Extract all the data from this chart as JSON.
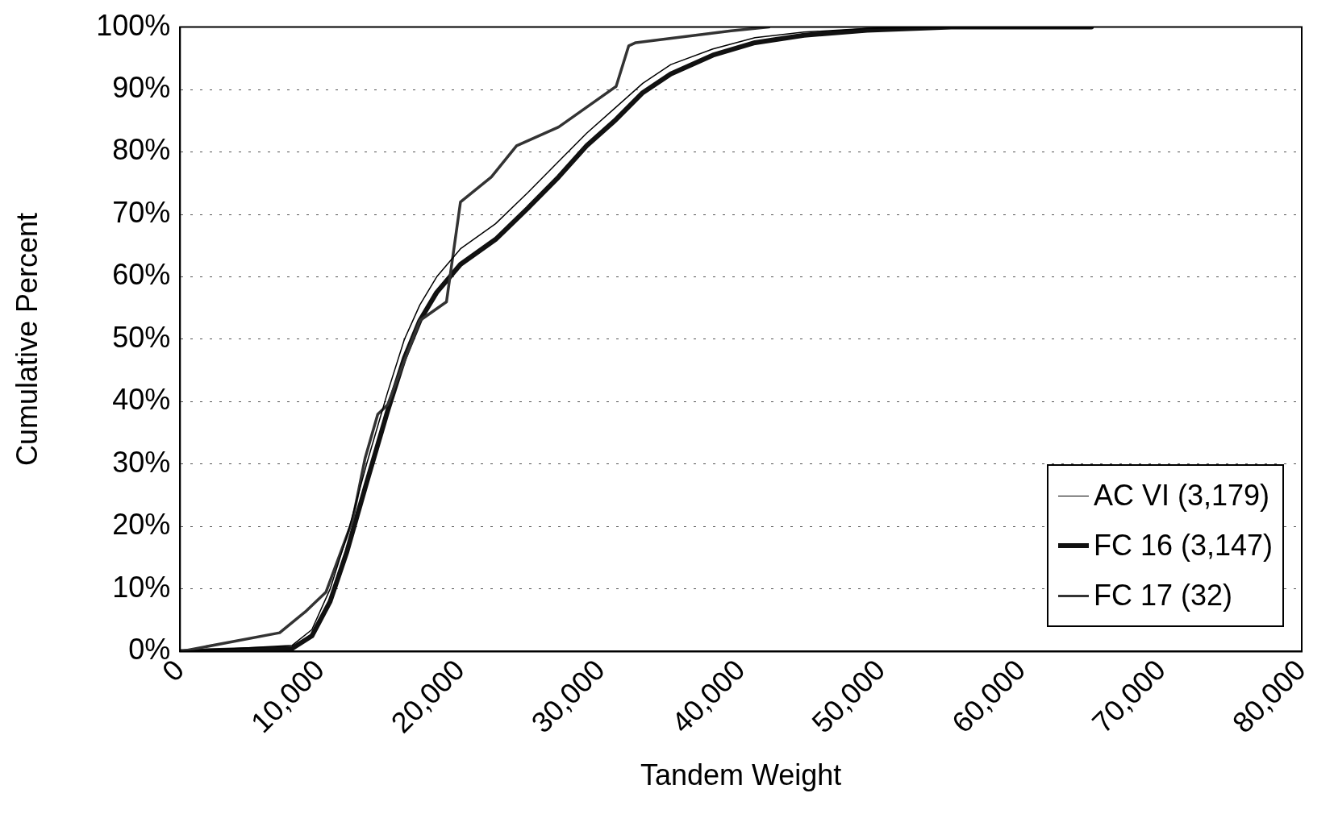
{
  "chart_data": {
    "type": "line",
    "xlabel": "Tandem Weight",
    "ylabel": "Cumulative Percent",
    "xlim": [
      0,
      80000
    ],
    "ylim": [
      0,
      100
    ],
    "xticks": [
      0,
      {
        "value": 10000,
        "label": "10,000"
      },
      {
        "value": 20000,
        "label": "20,000"
      },
      {
        "value": 30000,
        "label": "30,000"
      },
      {
        "value": 40000,
        "label": "40,000"
      },
      {
        "value": 50000,
        "label": "50,000"
      },
      {
        "value": 60000,
        "label": "60,000"
      },
      {
        "value": 70000,
        "label": "70,000"
      },
      {
        "value": 80000,
        "label": "80,000"
      }
    ],
    "yticks": [
      {
        "value": 0,
        "label": "0%"
      },
      {
        "value": 10,
        "label": "10%"
      },
      {
        "value": 20,
        "label": "20%"
      },
      {
        "value": 30,
        "label": "30%"
      },
      {
        "value": 40,
        "label": "40%"
      },
      {
        "value": 50,
        "label": "50%"
      },
      {
        "value": 60,
        "label": "60%"
      },
      {
        "value": 70,
        "label": "70%"
      },
      {
        "value": 80,
        "label": "80%"
      },
      {
        "value": 90,
        "label": "90%"
      },
      {
        "value": 100,
        "label": "100%"
      }
    ],
    "grid": "y",
    "legend": "bottom right",
    "marker": "none",
    "line_style": "solid",
    "series": [
      {
        "name": "AC VI (3,179)",
        "color": "#000000",
        "x": [
          0,
          8000,
          9400,
          10700,
          11900,
          13300,
          14800,
          16000,
          17100,
          18300,
          20000,
          22500,
          24800,
          27000,
          29000,
          31000,
          33000,
          35000,
          38000,
          41000,
          44500,
          49000,
          55000,
          65000
        ],
        "values": [
          0,
          1,
          3.5,
          10,
          18.5,
          30,
          41.5,
          50,
          55.5,
          60,
          64.5,
          68.5,
          73.5,
          78.5,
          83,
          87,
          91,
          94,
          96.5,
          98.3,
          99.2,
          99.8,
          100,
          100
        ]
      },
      {
        "name": "FC 16 (3,147)",
        "color": "#111111",
        "x": [
          0,
          8000,
          9400,
          10700,
          11900,
          13300,
          14800,
          16000,
          17100,
          18300,
          20000,
          22500,
          24800,
          27000,
          29000,
          31000,
          33000,
          35000,
          38000,
          41000,
          44500,
          49000,
          55000,
          65000
        ],
        "values": [
          0,
          0.5,
          2.5,
          8,
          16,
          27,
          38.5,
          47,
          53,
          57.5,
          62,
          66,
          71,
          76,
          81,
          85,
          89.5,
          92.5,
          95.5,
          97.5,
          98.7,
          99.5,
          100,
          100
        ]
      },
      {
        "name": "FC 17 (32)",
        "color": "#333333",
        "x": [
          0,
          7100,
          9000,
          10400,
          12300,
          13200,
          14100,
          14800,
          17100,
          19000,
          20000,
          22200,
          24000,
          27000,
          31100,
          32000,
          32500,
          39300,
          42000
        ],
        "values": [
          0,
          3,
          6.5,
          9.5,
          21,
          31,
          38,
          39.5,
          53,
          56,
          72,
          76,
          81,
          84,
          90.5,
          97,
          97.5,
          99.4,
          100
        ]
      }
    ]
  }
}
